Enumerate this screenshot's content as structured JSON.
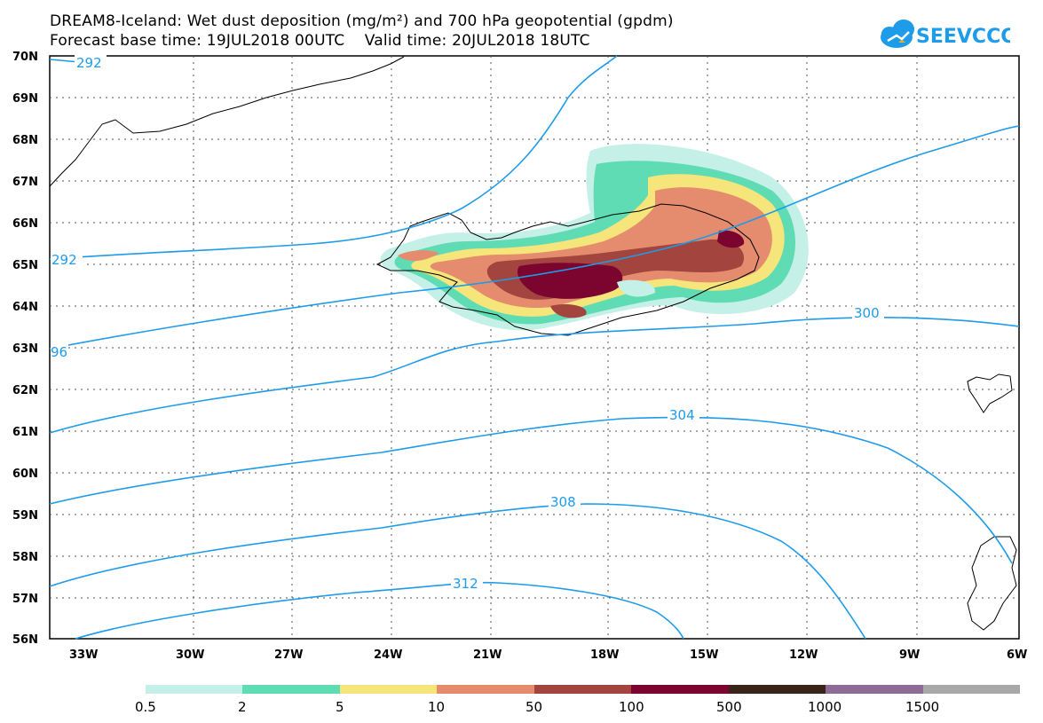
{
  "header": {
    "title_line1": "DREAM8-Iceland: Wet dust deposition (mg/m²) and 700 hPa geopotential (gpdm)",
    "title_line2": "Forecast base time: 19JUL2018 00UTC    Valid time: 20JUL2018 18UTC",
    "logo_text": "SEEVCCC",
    "logo_color": "#1e9be9"
  },
  "map": {
    "lat_labels": [
      "70N",
      "69N",
      "68N",
      "67N",
      "66N",
      "65N",
      "64N",
      "63N",
      "62N",
      "61N",
      "60N",
      "59N",
      "58N",
      "57N",
      "56N"
    ],
    "lon_labels": [
      "33W",
      "30W",
      "27W",
      "24W",
      "21W",
      "18W",
      "15W",
      "12W",
      "9W",
      "6W"
    ],
    "contour_color": "#1e9be9",
    "contour_labels": [
      "292",
      "292",
      "300",
      "96",
      "304",
      "308",
      "312"
    ]
  },
  "legend": {
    "colors": [
      "#c4f0e8",
      "#5fdcb4",
      "#f5e57a",
      "#e58c6e",
      "#a4443f",
      "#7c0530",
      "#3a2318",
      "#8f6c97",
      "#a8a8a8"
    ],
    "labels": [
      "0.5",
      "2",
      "5",
      "10",
      "50",
      "100",
      "500",
      "1000",
      "1500"
    ]
  }
}
